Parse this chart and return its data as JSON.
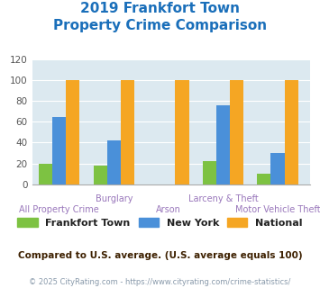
{
  "title_line1": "2019 Frankfort Town",
  "title_line2": "Property Crime Comparison",
  "title_color": "#1a6fba",
  "categories": [
    "All Property Crime",
    "Burglary",
    "Arson",
    "Larceny & Theft",
    "Motor Vehicle Theft"
  ],
  "frankfort_town": [
    20,
    18,
    0,
    22,
    10
  ],
  "new_york": [
    65,
    42,
    0,
    76,
    30
  ],
  "national": [
    100,
    100,
    100,
    100,
    100
  ],
  "color_frankfort": "#7dc242",
  "color_newyork": "#4a90d9",
  "color_national": "#f5a623",
  "ylim": [
    0,
    120
  ],
  "yticks": [
    0,
    20,
    40,
    60,
    80,
    100,
    120
  ],
  "background_color": "#dce9f0",
  "legend_labels": [
    "Frankfort Town",
    "New York",
    "National"
  ],
  "footer_text1": "Compared to U.S. average. (U.S. average equals 100)",
  "footer_text2": "© 2025 CityRating.com - https://www.cityrating.com/crime-statistics/",
  "footer_color1": "#3d2000",
  "footer_color2": "#8899aa",
  "label_color": "#9977bb",
  "x_positions": [
    0.5,
    1.5,
    2.5,
    3.5,
    4.5
  ],
  "bar_width": 0.25,
  "x_lim": [
    0.0,
    5.1
  ]
}
